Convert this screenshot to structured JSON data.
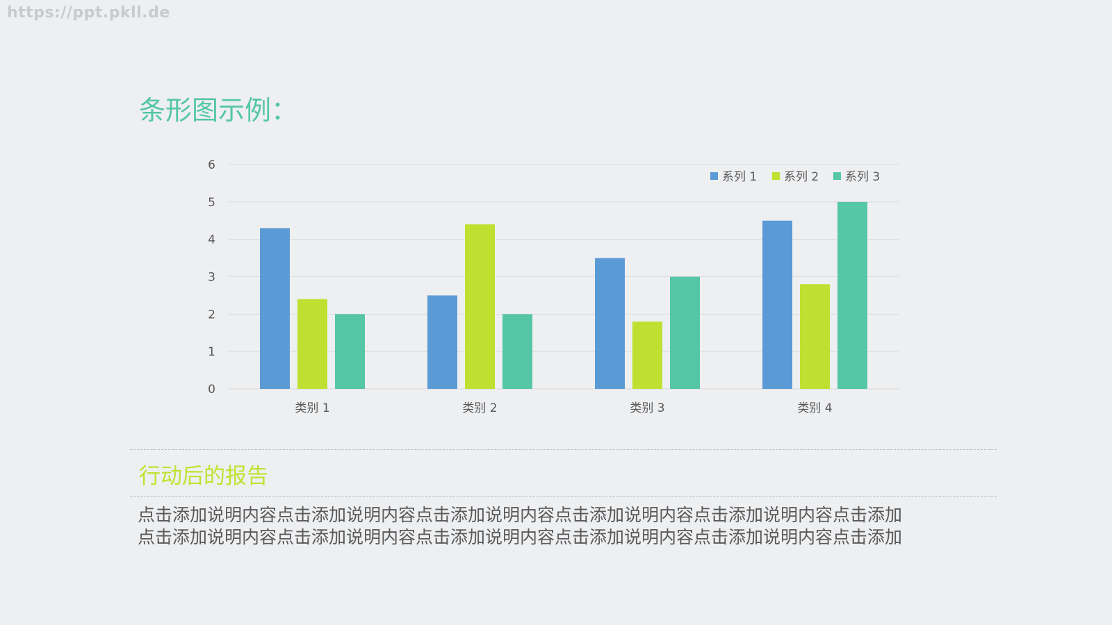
{
  "watermark": "https://ppt.pkll.de",
  "slide": {
    "title": "条形图示例：",
    "subtitle": "行动后的报告",
    "body_lines": [
      "点击添加说明内容点击添加说明内容点击添加说明内容点击添加说明内容点击添加说明内容点击添加",
      "点击添加说明内容点击添加说明内容点击添加说明内容点击添加说明内容点击添加说明内容点击添加"
    ]
  },
  "colors": {
    "title": "#55c6a6",
    "subtitle": "#bfe330",
    "series": [
      "#5b9bd5",
      "#bfe030",
      "#55c6a6"
    ],
    "gridline": "#d9d9d9",
    "text": "#595959"
  },
  "chart_data": {
    "type": "bar",
    "categories": [
      "类别 1",
      "类别 2",
      "类别 3",
      "类别 4"
    ],
    "series": [
      {
        "name": "系列 1",
        "values": [
          4.3,
          2.5,
          3.5,
          4.5
        ]
      },
      {
        "name": "系列 2",
        "values": [
          2.4,
          4.4,
          1.8,
          2.8
        ]
      },
      {
        "name": "系列 3",
        "values": [
          2.0,
          2.0,
          3.0,
          5.0
        ]
      }
    ],
    "ylim": [
      0,
      6
    ],
    "yticks": [
      0,
      1,
      2,
      3,
      4,
      5,
      6
    ],
    "grid": true,
    "legend": "top-right"
  }
}
